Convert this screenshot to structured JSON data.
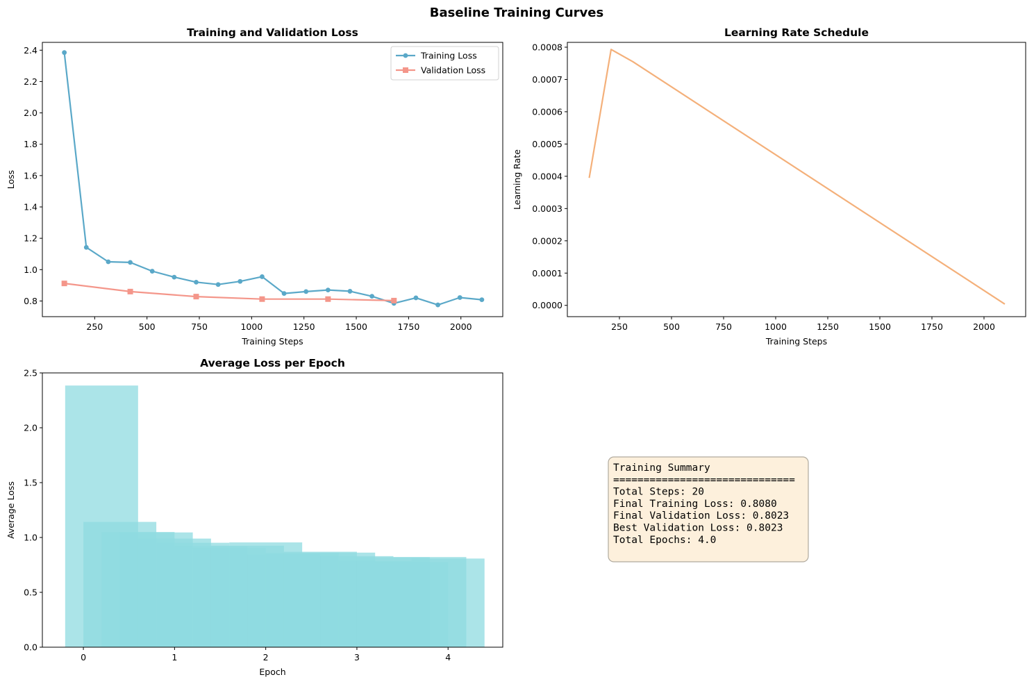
{
  "figure": {
    "title": "Baseline Training Curves"
  },
  "colors": {
    "training_loss": "#5aa8c8",
    "validation_loss": "#f4968a",
    "learning_rate": "#f4b07a",
    "epoch_bars": "#8fdbe0",
    "summary_bg": "#fdf0dc",
    "summary_border": "#b0aa9e"
  },
  "chart_data": [
    {
      "type": "line",
      "title": "Training and Validation Loss",
      "xlabel": "Training Steps",
      "ylabel": "Loss",
      "xlim": [
        0,
        2200
      ],
      "ylim": [
        0.7,
        2.45
      ],
      "xticks": [
        250,
        500,
        750,
        1000,
        1250,
        1500,
        1750,
        2000
      ],
      "yticks": [
        0.8,
        1.0,
        1.2,
        1.4,
        1.6,
        1.8,
        2.0,
        2.2,
        2.4
      ],
      "ytick_decimals": 1,
      "legend_position": "top-right",
      "series": [
        {
          "name": "Training Loss",
          "marker": "circle",
          "x": [
            105,
            210,
            315,
            420,
            525,
            630,
            735,
            840,
            945,
            1050,
            1155,
            1260,
            1365,
            1470,
            1575,
            1680,
            1785,
            1890,
            1995,
            2100
          ],
          "y": [
            2.385,
            1.142,
            1.05,
            1.046,
            0.99,
            0.952,
            0.92,
            0.905,
            0.925,
            0.955,
            0.848,
            0.86,
            0.87,
            0.862,
            0.83,
            0.785,
            0.82,
            0.775,
            0.822,
            0.808
          ]
        },
        {
          "name": "Validation Loss",
          "marker": "square",
          "x": [
            105,
            420,
            735,
            1050,
            1365,
            1680
          ],
          "y": [
            0.912,
            0.86,
            0.828,
            0.812,
            0.812,
            0.8023
          ]
        }
      ]
    },
    {
      "type": "line",
      "title": "Learning Rate Schedule",
      "xlabel": "Training Steps",
      "ylabel": "Learning Rate",
      "xlim": [
        0,
        2200
      ],
      "ylim": [
        -3.5e-05,
        0.000815
      ],
      "xticks": [
        250,
        500,
        750,
        1000,
        1250,
        1500,
        1750,
        2000
      ],
      "yticks": [
        0.0,
        0.0001,
        0.0002,
        0.0003,
        0.0004,
        0.0005,
        0.0006,
        0.0007,
        0.0008
      ],
      "ytick_decimals": 4,
      "series": [
        {
          "x": [
            105,
            210,
            315,
            2100
          ],
          "y": [
            0.000395,
            0.000793,
            0.000755,
            4e-06
          ]
        }
      ]
    },
    {
      "type": "bar",
      "title": "Average Loss per Epoch",
      "xlabel": "Epoch",
      "ylabel": "Average Loss",
      "xlim": [
        -0.45,
        4.6
      ],
      "ylim": [
        0,
        2.5
      ],
      "xticks": [
        0,
        1,
        2,
        3,
        4
      ],
      "yticks": [
        0.0,
        0.5,
        1.0,
        1.5,
        2.0,
        2.5
      ],
      "ytick_decimals": 1,
      "bar_width": 0.8,
      "bars": {
        "x": [
          0.2,
          0.4,
          0.6,
          0.8,
          1.0,
          1.2,
          1.4,
          1.6,
          1.8,
          2.0,
          2.2,
          2.4,
          2.6,
          2.8,
          3.0,
          3.2,
          3.4,
          3.6,
          3.8,
          4.0
        ],
        "values": [
          2.385,
          1.142,
          1.05,
          1.046,
          0.99,
          0.952,
          0.92,
          0.905,
          0.925,
          0.955,
          0.848,
          0.86,
          0.87,
          0.862,
          0.83,
          0.785,
          0.82,
          0.775,
          0.822,
          0.808
        ]
      }
    }
  ],
  "summary": {
    "lines": [
      "Training Summary",
      "==============================",
      "Total Steps: 20",
      "Final Training Loss: 0.8080",
      "Final Validation Loss: 0.8023",
      "Best Validation Loss: 0.8023",
      "Total Epochs: 4.0"
    ]
  }
}
